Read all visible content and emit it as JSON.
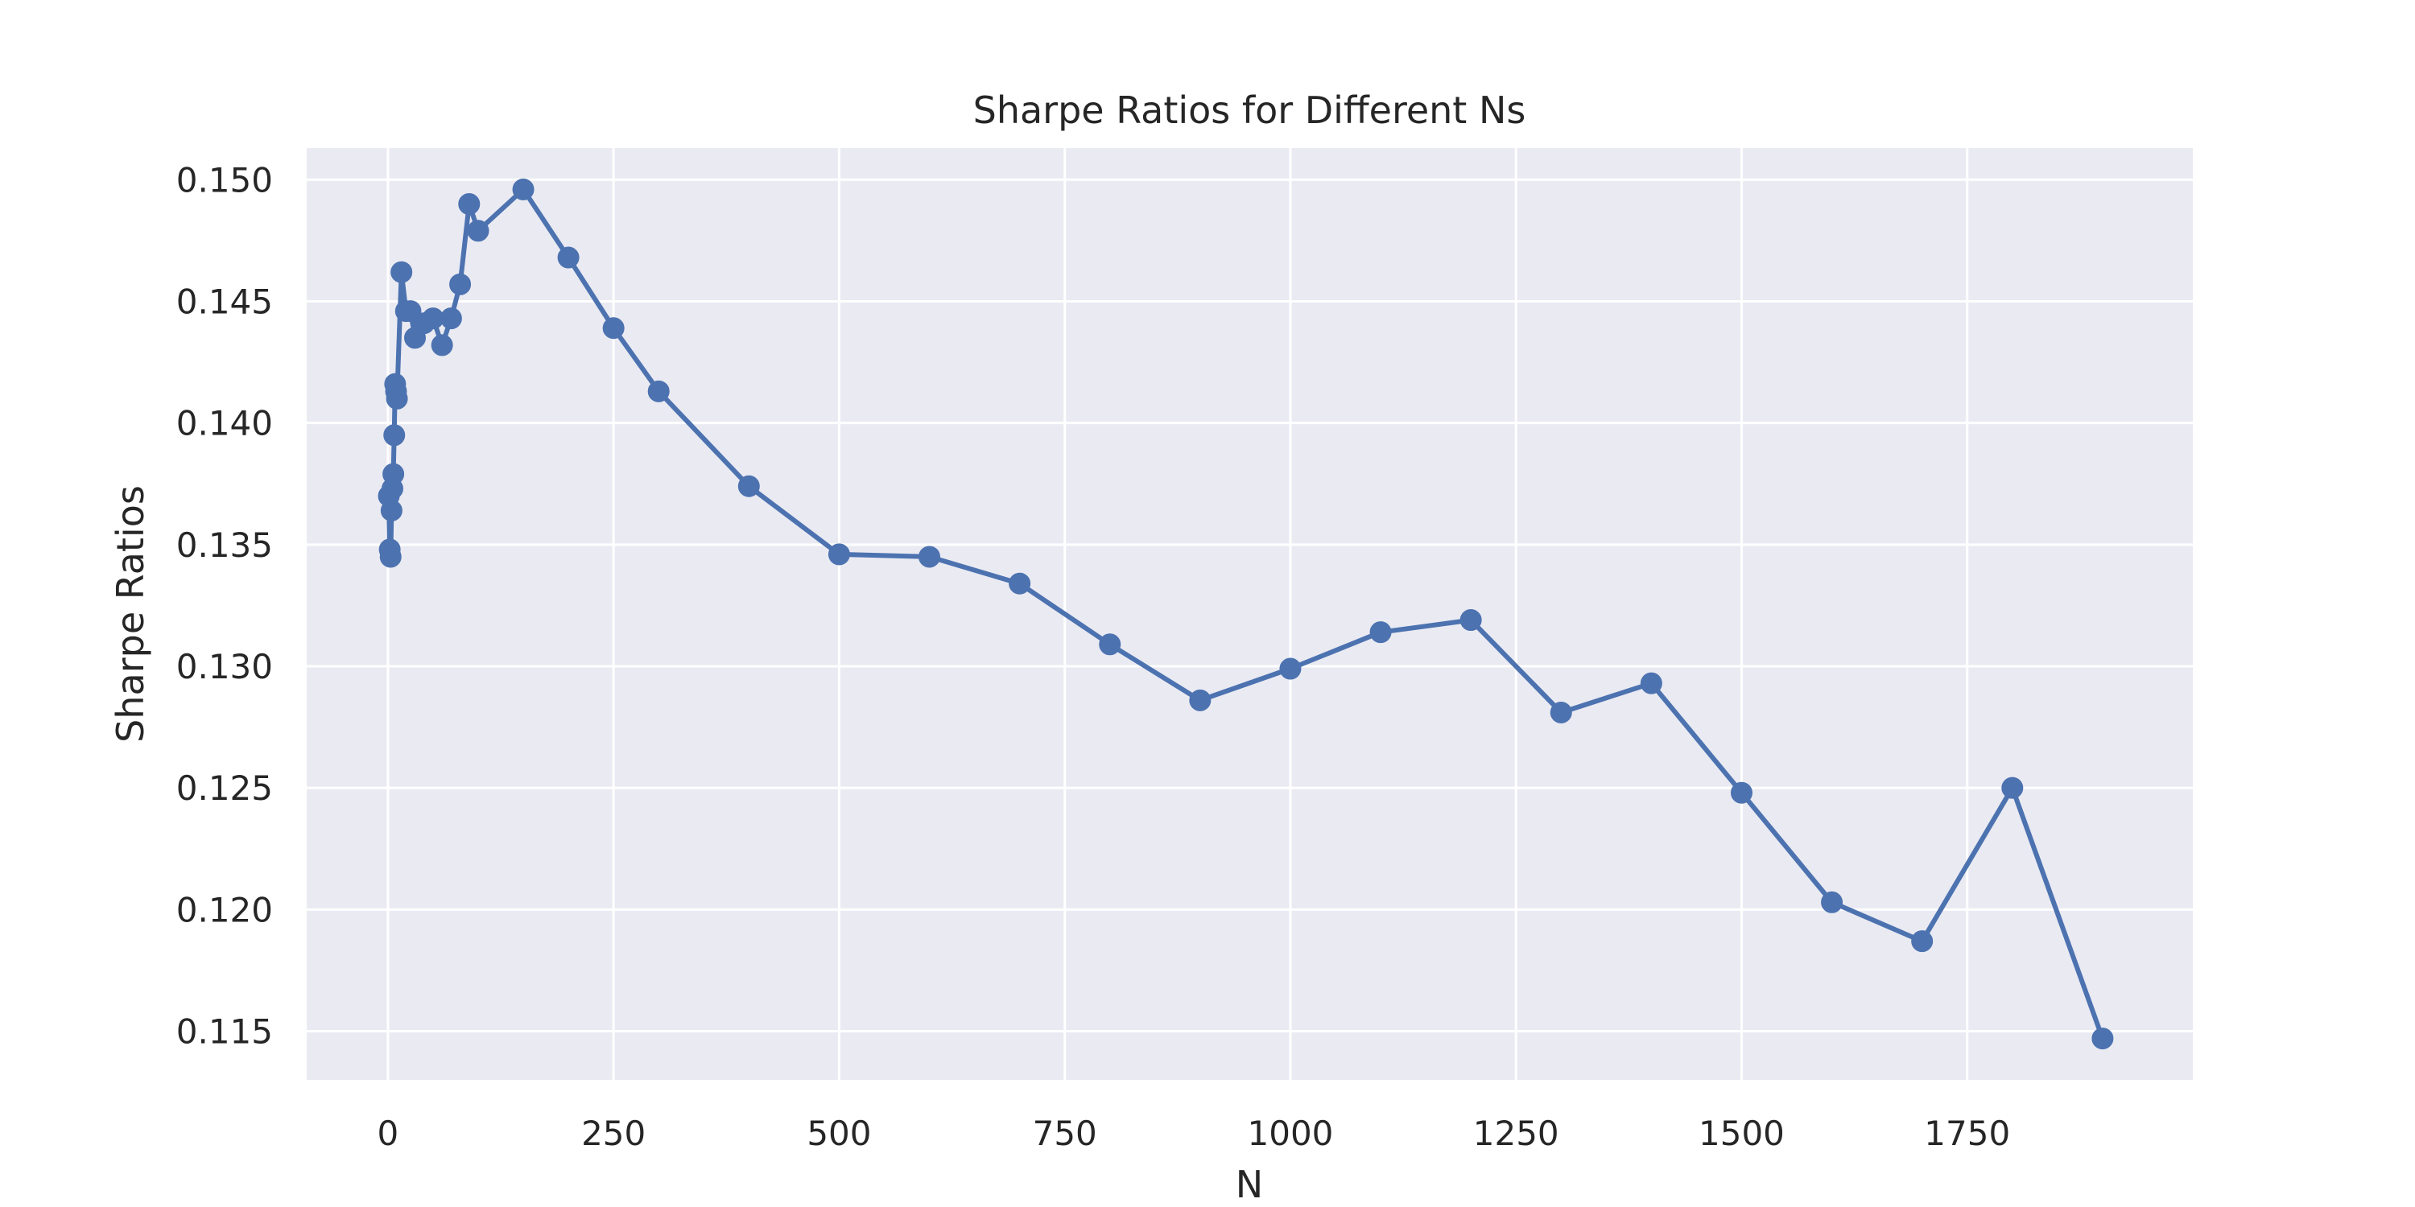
{
  "chart_data": {
    "type": "line",
    "title": "Sharpe Ratios for Different Ns",
    "xlabel": "N",
    "ylabel": "Sharpe Ratios",
    "xlim": [
      -90,
      2000
    ],
    "ylim": [
      0.113,
      0.1513
    ],
    "xticks": [
      0,
      250,
      500,
      750,
      1000,
      1250,
      1500,
      1750
    ],
    "xtick_labels": [
      "0",
      "250",
      "500",
      "750",
      "1000",
      "1250",
      "1500",
      "1750"
    ],
    "yticks": [
      0.115,
      0.12,
      0.125,
      0.13,
      0.135,
      0.14,
      0.145,
      0.15
    ],
    "ytick_labels": [
      "0.115",
      "0.120",
      "0.125",
      "0.130",
      "0.135",
      "0.140",
      "0.145",
      "0.150"
    ],
    "grid": true,
    "colors": {
      "background": "#eaeaf2",
      "grid": "#ffffff",
      "line": "#4c72b0"
    },
    "series": [
      {
        "marker": "circle",
        "x": [
          1,
          2,
          3,
          4,
          5,
          6,
          7,
          8,
          9,
          10,
          15,
          20,
          25,
          30,
          40,
          50,
          60,
          70,
          80,
          90,
          100,
          150,
          200,
          250,
          300,
          400,
          500,
          600,
          700,
          800,
          900,
          1000,
          1100,
          1200,
          1300,
          1400,
          1500,
          1600,
          1700,
          1800,
          1900
        ],
        "y": [
          0.137,
          0.1348,
          0.1345,
          0.1364,
          0.1373,
          0.1379,
          0.1395,
          0.1416,
          0.1413,
          0.141,
          0.1462,
          0.1446,
          0.1446,
          0.1435,
          0.1441,
          0.1443,
          0.1432,
          0.1443,
          0.1457,
          0.149,
          0.1479,
          0.1496,
          0.1468,
          0.1439,
          0.1413,
          0.1374,
          0.1346,
          0.1345,
          0.1334,
          0.1309,
          0.1286,
          0.1299,
          0.1314,
          0.1319,
          0.1281,
          0.1293,
          0.1248,
          0.1203,
          0.1187,
          0.125,
          0.1147
        ]
      }
    ]
  }
}
